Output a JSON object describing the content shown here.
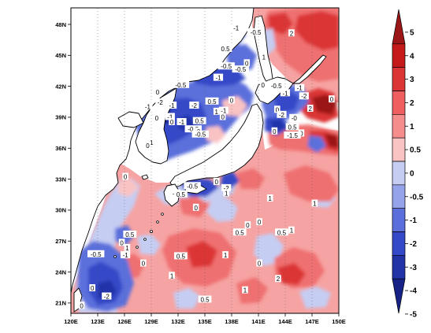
{
  "map": {
    "lon_ticks": [
      "120E",
      "123E",
      "126E",
      "129E",
      "132E",
      "135E",
      "138E",
      "141E",
      "144E",
      "147E",
      "150E"
    ],
    "lat_ticks": [
      "21N",
      "24N",
      "27N",
      "30N",
      "33N",
      "36N",
      "39N",
      "42N",
      "45N",
      "48N"
    ],
    "contour_labels": [
      {
        "text": "-0.5",
        "lon": 140.7,
        "lat": 47.2
      },
      {
        "text": "-1",
        "lon": 138.5,
        "lat": 47.6
      },
      {
        "text": "2",
        "lon": 144.7,
        "lat": 47.1
      },
      {
        "text": "0.5",
        "lon": 137.3,
        "lat": 45.6
      },
      {
        "text": "1",
        "lon": 141.6,
        "lat": 44.8
      },
      {
        "text": "-0.5",
        "lon": 137.4,
        "lat": 43.9
      },
      {
        "text": "-0.5",
        "lon": 139.0,
        "lat": 43.6
      },
      {
        "text": "0",
        "lon": 139.7,
        "lat": 44.2
      },
      {
        "text": "-1",
        "lon": 136.5,
        "lat": 42.8
      },
      {
        "text": "-0.5",
        "lon": 132.3,
        "lat": 42.1
      },
      {
        "text": "0",
        "lon": 141.5,
        "lat": 42.1
      },
      {
        "text": "-0.5",
        "lon": 143.0,
        "lat": 42.0
      },
      {
        "text": "-1",
        "lon": 145.6,
        "lat": 41.8
      },
      {
        "text": "-1",
        "lon": 131.3,
        "lat": 40.1
      },
      {
        "text": "-2",
        "lon": 130.0,
        "lat": 40.4
      },
      {
        "text": "0",
        "lon": 129.7,
        "lat": 41.4
      },
      {
        "text": "-1",
        "lon": 128.6,
        "lat": 40.0
      },
      {
        "text": "0.5",
        "lon": 135.8,
        "lat": 40.5
      },
      {
        "text": "-1",
        "lon": 137.1,
        "lat": 39.6
      },
      {
        "text": "-2",
        "lon": 133.8,
        "lat": 40.1
      },
      {
        "text": "0",
        "lon": 138.0,
        "lat": 40.6
      },
      {
        "text": "1",
        "lon": 136.3,
        "lat": 39.5
      },
      {
        "text": "0",
        "lon": 137.0,
        "lat": 39.0
      },
      {
        "text": "-1",
        "lon": 144.0,
        "lat": 41.3
      },
      {
        "text": "-2",
        "lon": 146.1,
        "lat": 41.0
      },
      {
        "text": "0",
        "lon": 143.1,
        "lat": 39.7
      },
      {
        "text": "-2",
        "lon": 143.6,
        "lat": 39.2
      },
      {
        "text": "-0",
        "lon": 145.0,
        "lat": 38.9
      },
      {
        "text": "0",
        "lon": 149.2,
        "lat": 40.7
      },
      {
        "text": "2",
        "lon": 146.8,
        "lat": 39.8
      },
      {
        "text": "0.5",
        "lon": 144.8,
        "lat": 38.0
      },
      {
        "text": "0",
        "lon": 145.8,
        "lat": 37.4
      },
      {
        "text": "-1",
        "lon": 131.1,
        "lat": 39.0
      },
      {
        "text": "0",
        "lon": 131.3,
        "lat": 38.5
      },
      {
        "text": "0",
        "lon": 129.6,
        "lat": 38.9
      },
      {
        "text": "-0.5",
        "lon": 133.7,
        "lat": 37.8
      },
      {
        "text": "-1",
        "lon": 132.4,
        "lat": 38.5
      },
      {
        "text": "0",
        "lon": 134.3,
        "lat": 37.6
      },
      {
        "text": "0.5",
        "lon": 134.4,
        "lat": 38.6
      },
      {
        "text": "-0.5",
        "lon": 134.5,
        "lat": 37.3
      },
      {
        "text": "-1.5",
        "lon": 144.8,
        "lat": 37.2
      },
      {
        "text": "0",
        "lon": 142.8,
        "lat": 37.6
      },
      {
        "text": "-1",
        "lon": 128.9,
        "lat": 36.5
      },
      {
        "text": "0",
        "lon": 128.6,
        "lat": 36.2
      },
      {
        "text": "-0.5",
        "lon": 133.6,
        "lat": 32.3
      },
      {
        "text": "-2",
        "lon": 137.4,
        "lat": 32.1
      },
      {
        "text": "0",
        "lon": 136.3,
        "lat": 32.7
      },
      {
        "text": "1",
        "lon": 137.4,
        "lat": 31.6
      },
      {
        "text": "-1",
        "lon": 131.7,
        "lat": 31.6
      },
      {
        "text": "0",
        "lon": 126.1,
        "lat": 33.2
      },
      {
        "text": "0.5",
        "lon": 132.3,
        "lat": 31.5
      },
      {
        "text": "0",
        "lon": 134.0,
        "lat": 30.2
      },
      {
        "text": "1",
        "lon": 147.3,
        "lat": 30.6
      },
      {
        "text": "0.5",
        "lon": 138.9,
        "lat": 27.8
      },
      {
        "text": "0.5",
        "lon": 143.6,
        "lat": 27.8
      },
      {
        "text": "1",
        "lon": 144.7,
        "lat": 28.0
      },
      {
        "text": "0",
        "lon": 139.8,
        "lat": 28.5
      },
      {
        "text": "0",
        "lon": 141.1,
        "lat": 28.8
      },
      {
        "text": "0.5",
        "lon": 126.6,
        "lat": 27.6
      },
      {
        "text": "0",
        "lon": 125.7,
        "lat": 26.8
      },
      {
        "text": "1",
        "lon": 126.3,
        "lat": 26.3
      },
      {
        "text": "-0.5",
        "lon": 122.8,
        "lat": 25.7
      },
      {
        "text": "-1",
        "lon": 126.1,
        "lat": 25.6
      },
      {
        "text": "0.5",
        "lon": 132.3,
        "lat": 25.5
      },
      {
        "text": "1",
        "lon": 137.3,
        "lat": 25.6
      },
      {
        "text": "0",
        "lon": 141.1,
        "lat": 24.8
      },
      {
        "text": "0",
        "lon": 128.1,
        "lat": 24.8
      },
      {
        "text": "1",
        "lon": 131.3,
        "lat": 23.6
      },
      {
        "text": "2",
        "lon": 143.2,
        "lat": 23.3
      },
      {
        "text": "0",
        "lon": 122.4,
        "lat": 22.4
      },
      {
        "text": "-2",
        "lon": 124.0,
        "lat": 21.6
      },
      {
        "text": "0.5",
        "lon": 135.0,
        "lat": 21.3
      },
      {
        "text": "1",
        "lon": 139.5,
        "lat": 22.2
      },
      {
        "text": "0",
        "lon": 121.2,
        "lat": 20.7
      },
      {
        "text": "1",
        "lon": 142.3,
        "lat": 31.1
      }
    ]
  },
  "colorbar": {
    "labels": [
      "5",
      "4",
      "3",
      "2",
      "1",
      "0.5",
      "0",
      "-0.5",
      "-1",
      "-2",
      "-3",
      "-4",
      "-5"
    ],
    "colors": [
      "#9b1616",
      "#c41a1a",
      "#dc3535",
      "#ef5f5f",
      "#f58d8d",
      "#f9c3c3",
      "#c5cdf3",
      "#94a3ea",
      "#5b6fdc",
      "#3449c8",
      "#2233a8",
      "#162285"
    ]
  }
}
